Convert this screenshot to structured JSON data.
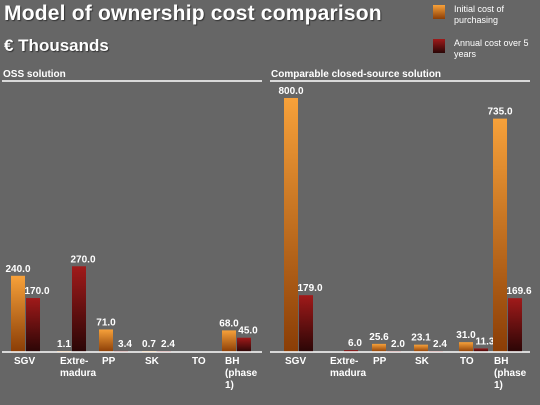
{
  "title": "Model of ownership cost comparison",
  "subtitle": "€ Thousands",
  "colors": {
    "initial_light": "#f7a13a",
    "initial_dark": "#8a3d06",
    "annual_light": "#a01a1a",
    "annual_dark": "#2a0606",
    "background": "#666666"
  },
  "legend": [
    {
      "series": "initial",
      "label": "Initial cost of purchasing"
    },
    {
      "series": "annual",
      "label": "Annual cost over 5 years"
    }
  ],
  "chart_data": [
    {
      "type": "bar",
      "title": "OSS solution",
      "categories": [
        [
          "SGV"
        ],
        [
          "Extre-",
          "madura"
        ],
        [
          "PP"
        ],
        [
          "SK"
        ],
        [
          "TO"
        ],
        [
          "BH",
          "(phase",
          "1)"
        ]
      ],
      "series": [
        {
          "name": "Initial cost of purchasing",
          "key": "initial",
          "values": [
            240.0,
            1.1,
            71.0,
            0.7,
            0,
            68.0
          ],
          "labels": [
            "240.0",
            "1.1",
            "71.0",
            "0.7",
            "",
            "68.0"
          ]
        },
        {
          "name": "Annual cost over 5 years",
          "key": "annual",
          "values": [
            170.0,
            270.0,
            3.4,
            2.4,
            0,
            45.0
          ],
          "labels": [
            "170.0",
            "270.0",
            "3.4",
            "2.4",
            "",
            "45.0"
          ]
        }
      ],
      "ylim": [
        0,
        800
      ]
    },
    {
      "type": "bar",
      "title": "Comparable closed-source solution",
      "categories": [
        [
          "SGV"
        ],
        [
          "Extre-",
          "madura"
        ],
        [
          "PP"
        ],
        [
          "SK"
        ],
        [
          "TO"
        ],
        [
          "BH",
          "(phase",
          "1)"
        ]
      ],
      "series": [
        {
          "name": "Initial cost of purchasing",
          "key": "initial",
          "values": [
            800.0,
            0,
            25.6,
            23.1,
            31.0,
            735.0
          ],
          "labels": [
            "800.0",
            "",
            "25.6",
            "23.1",
            "31.0",
            "735.0"
          ]
        },
        {
          "name": "Annual cost over 5 years",
          "key": "annual",
          "values": [
            179.0,
            6.0,
            2.0,
            2.4,
            11.3,
            169.6
          ],
          "labels": [
            "179.0",
            "6.0",
            "2.0",
            "2.4",
            "11.3",
            "169.6"
          ]
        }
      ],
      "ylim": [
        0,
        800
      ]
    }
  ]
}
